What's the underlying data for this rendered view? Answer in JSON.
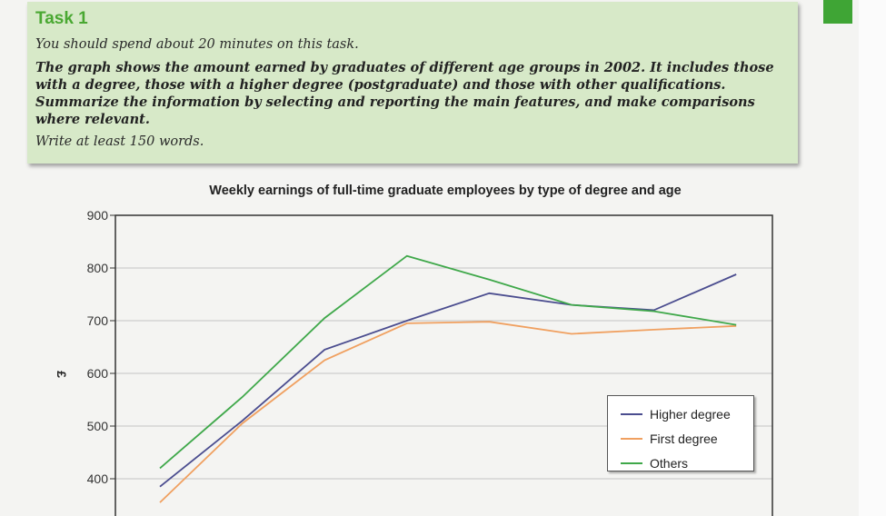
{
  "task": {
    "title": "Task 1",
    "time_note": "You should spend about 20 minutes on this task.",
    "prompt": "The graph shows the amount earned by graduates of different age groups in 2002. It includes those with a degree, those with a higher degree (postgraduate) and those with other qualifications. Summarize the information by selecting and reporting the main features, and make comparisons where relevant.",
    "word_note": "Write at least 150 words."
  },
  "colors": {
    "accent_green": "#3fa535",
    "higher_degree": "#4b4d8f",
    "first_degree": "#f0a060",
    "others": "#3fa84a"
  },
  "chart_data": {
    "type": "line",
    "title": "Weekly earnings of full-time graduate employees by type of degree and age",
    "ylabel": "£",
    "xlabel": "",
    "ylim": [
      300,
      900
    ],
    "yticks": [
      400,
      500,
      600,
      700,
      800,
      900
    ],
    "grid": true,
    "legend_position": "bottom-right",
    "x": [
      1,
      2,
      3,
      4,
      5,
      6,
      7,
      8
    ],
    "series": [
      {
        "name": "Higher degree",
        "color": "#4b4d8f",
        "values": [
          385,
          510,
          645,
          700,
          752,
          730,
          720,
          788
        ]
      },
      {
        "name": "First degree",
        "color": "#f0a060",
        "values": [
          355,
          505,
          625,
          695,
          698,
          675,
          683,
          690
        ]
      },
      {
        "name": "Others",
        "color": "#3fa84a",
        "values": [
          420,
          555,
          705,
          823,
          778,
          730,
          718,
          692
        ]
      }
    ]
  }
}
